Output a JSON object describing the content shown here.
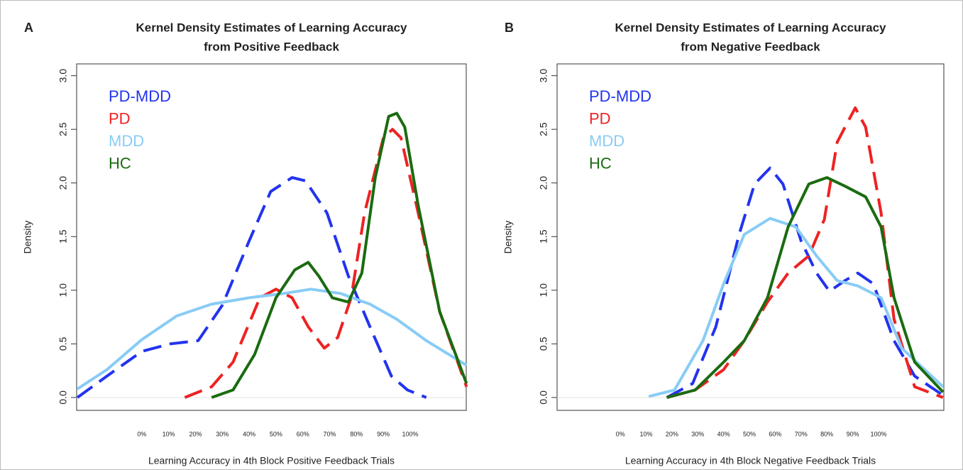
{
  "chart_data": [
    {
      "type": "line",
      "panel_label": "A",
      "title": [
        "Kernel Density Estimates of Learning Accuracy",
        "from Positive Feedback"
      ],
      "x_label": "Learning Accuracy in 4th Block Positive Feedback Trials",
      "y_label": "Density",
      "xlim": [
        -24.3,
        120.9
      ],
      "ylim": [
        -0.12,
        3.11
      ],
      "xticks": [
        {
          "value": 0,
          "label": "0%"
        },
        {
          "value": 10,
          "label": "10%"
        },
        {
          "value": 20,
          "label": "20%"
        },
        {
          "value": 30,
          "label": "30%"
        },
        {
          "value": 40,
          "label": "40%"
        },
        {
          "value": 50,
          "label": "50%"
        },
        {
          "value": 60,
          "label": "60%"
        },
        {
          "value": 70,
          "label": "70%"
        },
        {
          "value": 80,
          "label": "80%"
        },
        {
          "value": 90,
          "label": "90%"
        },
        {
          "value": 100,
          "label": "100%"
        }
      ],
      "yticks": [
        {
          "value": 0,
          "label": "0.0"
        },
        {
          "value": 0.5,
          "label": "0.5"
        },
        {
          "value": 1,
          "label": "1.0"
        },
        {
          "value": 1.5,
          "label": "1.5"
        },
        {
          "value": 2,
          "label": "2.0"
        },
        {
          "value": 2.5,
          "label": "2.5"
        },
        {
          "value": 3,
          "label": "3.0"
        }
      ],
      "series": [
        {
          "name": "PD-MDD",
          "color": "#2233ee",
          "linestyle": "dashed",
          "x": [
            -24,
            -13,
            0,
            10.6,
            21,
            30,
            40,
            48,
            56,
            61,
            69,
            77,
            85,
            93,
            99,
            106
          ],
          "values": [
            0,
            0.2,
            0.43,
            0.5,
            0.53,
            0.86,
            1.46,
            1.92,
            2.05,
            2.02,
            1.72,
            1.13,
            0.66,
            0.2,
            0.07,
            0
          ]
        },
        {
          "name": "PD",
          "color": "#ee2222",
          "linestyle": "dashed",
          "x": [
            16,
            26,
            34,
            44,
            50,
            56,
            62,
            68,
            73,
            78,
            83,
            90,
            93.4,
            96.6,
            103,
            111,
            121
          ],
          "values": [
            0,
            0.1,
            0.33,
            0.93,
            1.01,
            0.93,
            0.66,
            0.46,
            0.56,
            0.93,
            1.72,
            2.42,
            2.5,
            2.42,
            1.72,
            0.8,
            0.1
          ]
        },
        {
          "name": "MDD",
          "color": "#88ccf5",
          "linestyle": "solid",
          "x": [
            -24,
            -13,
            0,
            13,
            26,
            40,
            53,
            63,
            74,
            85,
            95,
            106,
            121
          ],
          "values": [
            0.08,
            0.26,
            0.54,
            0.76,
            0.87,
            0.93,
            0.97,
            1.01,
            0.97,
            0.87,
            0.73,
            0.53,
            0.3
          ]
        },
        {
          "name": "HC",
          "color": "#1a6b10",
          "linestyle": "solid",
          "x": [
            26,
            34,
            42,
            50,
            57,
            62,
            66,
            71,
            77,
            82,
            87,
            92,
            95,
            98,
            103,
            111,
            121
          ],
          "values": [
            0,
            0.07,
            0.4,
            0.93,
            1.19,
            1.26,
            1.13,
            0.93,
            0.89,
            1.16,
            2.05,
            2.62,
            2.65,
            2.52,
            1.79,
            0.8,
            0.13
          ]
        }
      ]
    },
    {
      "type": "line",
      "panel_label": "B",
      "title": [
        "Kernel Density Estimates of Learning Accuracy",
        "from Negative Feedback"
      ],
      "x_label": "Learning Accuracy in 4th Block Negative Feedback Trials",
      "y_label": "Density",
      "xlim": [
        -24.5,
        125.3
      ],
      "ylim": [
        -0.12,
        3.11
      ],
      "xticks": [
        {
          "value": 0,
          "label": "0%"
        },
        {
          "value": 10,
          "label": "10%"
        },
        {
          "value": 20,
          "label": "20%"
        },
        {
          "value": 30,
          "label": "30%"
        },
        {
          "value": 40,
          "label": "40%"
        },
        {
          "value": 50,
          "label": "50%"
        },
        {
          "value": 60,
          "label": "60%"
        },
        {
          "value": 70,
          "label": "70%"
        },
        {
          "value": 80,
          "label": "80%"
        },
        {
          "value": 90,
          "label": "90%"
        },
        {
          "value": 100,
          "label": "100%"
        }
      ],
      "yticks": [
        {
          "value": 0,
          "label": "0.0"
        },
        {
          "value": 0.5,
          "label": "0.5"
        },
        {
          "value": 1,
          "label": "1.0"
        },
        {
          "value": 1.5,
          "label": "1.5"
        },
        {
          "value": 2,
          "label": "2.0"
        },
        {
          "value": 2.5,
          "label": "2.5"
        },
        {
          "value": 3,
          "label": "3.0"
        }
      ],
      "series": [
        {
          "name": "PD-MDD",
          "color": "#2233ee",
          "linestyle": "dashed",
          "x": [
            18,
            28,
            37,
            46,
            52,
            58,
            63,
            70,
            76,
            81,
            87,
            92,
            98,
            106,
            114,
            125
          ],
          "values": [
            0,
            0.13,
            0.66,
            1.52,
            1.99,
            2.14,
            1.99,
            1.46,
            1.16,
            0.99,
            1.09,
            1.16,
            1.06,
            0.53,
            0.2,
            0.02
          ]
        },
        {
          "name": "PD",
          "color": "#ee2222",
          "linestyle": "dashed",
          "x": [
            18,
            29,
            40,
            48,
            57,
            65,
            73,
            79,
            84,
            87,
            91,
            95,
            101,
            106,
            114,
            125
          ],
          "values": [
            0,
            0.07,
            0.26,
            0.53,
            0.89,
            1.16,
            1.32,
            1.66,
            2.38,
            2.52,
            2.7,
            2.52,
            1.72,
            0.73,
            0.1,
            0
          ]
        },
        {
          "name": "MDD",
          "color": "#88ccf5",
          "linestyle": "solid",
          "x": [
            11,
            21,
            32,
            40,
            48,
            58,
            68,
            76,
            84,
            92,
            101,
            109,
            125
          ],
          "values": [
            0.01,
            0.07,
            0.53,
            1.06,
            1.52,
            1.67,
            1.59,
            1.32,
            1.09,
            1.04,
            0.93,
            0.46,
            0.1
          ]
        },
        {
          "name": "HC",
          "color": "#1a6b10",
          "linestyle": "solid",
          "x": [
            18,
            29,
            40,
            48,
            57,
            65,
            73,
            80,
            87,
            95,
            101,
            106,
            114,
            125
          ],
          "values": [
            0,
            0.07,
            0.33,
            0.53,
            0.93,
            1.59,
            1.99,
            2.05,
            1.97,
            1.87,
            1.59,
            0.93,
            0.33,
            0.05
          ]
        }
      ]
    }
  ]
}
